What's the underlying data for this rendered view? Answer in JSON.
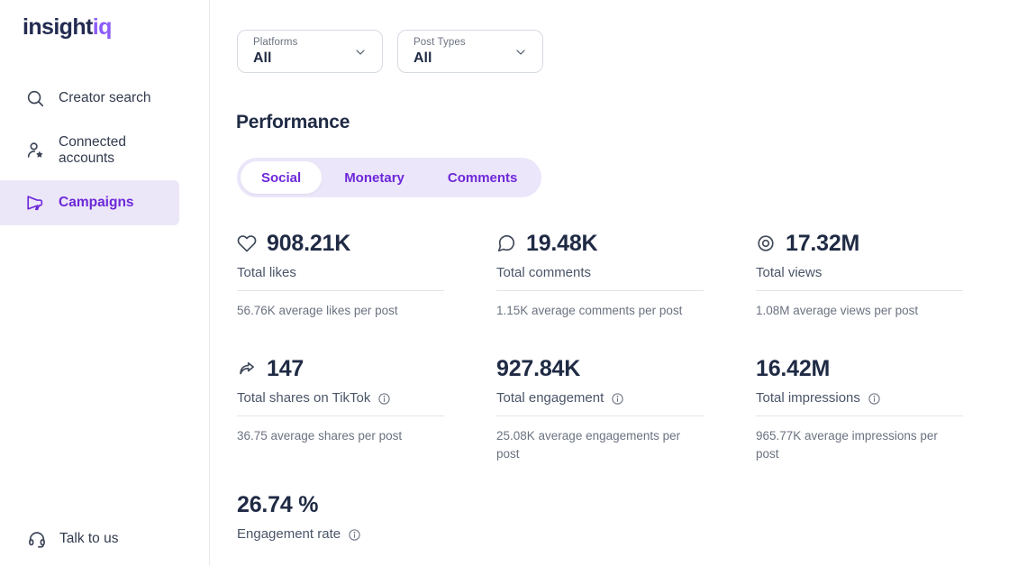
{
  "brand": {
    "primary": "insight",
    "accent": "iq"
  },
  "colors": {
    "accent": "#6d28d9",
    "accent_soft": "#ece6fa",
    "logo_accent": "#8b5cf6",
    "navy": "#1f2a44"
  },
  "sidebar": {
    "items": [
      {
        "label": "Creator search",
        "icon": "search",
        "active": false
      },
      {
        "label": "Connected accounts",
        "icon": "user-star",
        "active": false
      },
      {
        "label": "Campaigns",
        "icon": "megaphone",
        "active": true
      }
    ],
    "footer_item": {
      "label": "Talk to us",
      "icon": "headset"
    }
  },
  "filters": [
    {
      "label": "Platforms",
      "value": "All"
    },
    {
      "label": "Post Types",
      "value": "All"
    }
  ],
  "page": {
    "section_title": "Performance"
  },
  "tabs": [
    {
      "label": "Social",
      "active": true
    },
    {
      "label": "Monetary",
      "active": false
    },
    {
      "label": "Comments",
      "active": false
    }
  ],
  "metrics": [
    {
      "icon": "heart",
      "value": "908.21K",
      "label": "Total likes",
      "info": false,
      "average": "56.76K average likes per post"
    },
    {
      "icon": "comment",
      "value": "19.48K",
      "label": "Total comments",
      "info": false,
      "average": "1.15K average comments per post"
    },
    {
      "icon": "views",
      "value": "17.32M",
      "label": "Total views",
      "info": false,
      "average": "1.08M average views per post"
    },
    {
      "icon": "share",
      "value": "147",
      "label": "Total shares on TikTok",
      "info": true,
      "average": "36.75 average shares per post"
    },
    {
      "icon": null,
      "value": "927.84K",
      "label": "Total engagement",
      "info": true,
      "average": "25.08K average engagements per post"
    },
    {
      "icon": null,
      "value": "16.42M",
      "label": "Total impressions",
      "info": true,
      "average": "965.77K average impressions per post"
    },
    {
      "icon": null,
      "value": "26.74 %",
      "label": "Engagement rate",
      "info": true,
      "average": null
    }
  ]
}
